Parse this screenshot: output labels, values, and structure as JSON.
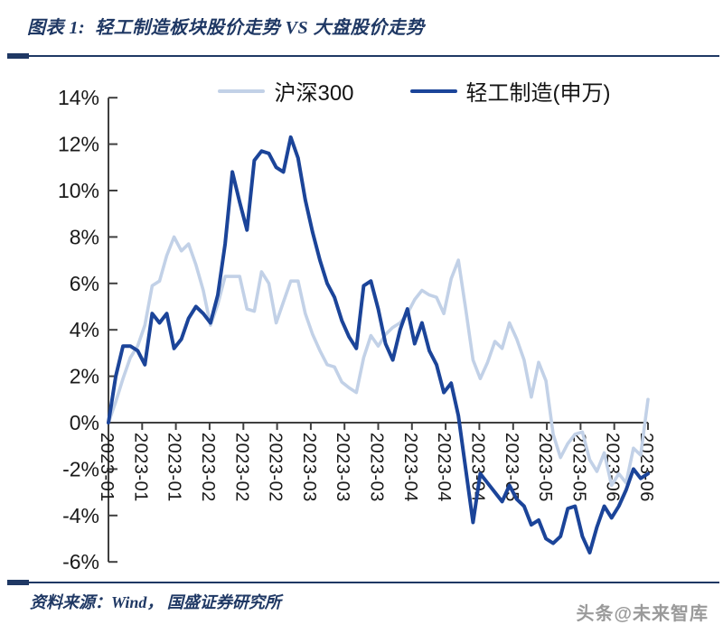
{
  "header": {
    "title": "图表 1:  轻工制造板块股价走势 VS 大盘股价走势"
  },
  "legend": {
    "items": [
      {
        "label": "沪深300",
        "color": "#c2d1e7"
      },
      {
        "label": "轻工制造(申万)",
        "color": "#1b4499"
      }
    ]
  },
  "chart_data": {
    "type": "line",
    "title": "轻工制造板块股价走势 VS 大盘股价走势",
    "xlabel": "",
    "ylabel": "",
    "y_unit": "%",
    "ylim": [
      -6,
      14
    ],
    "ytick_step": 2,
    "grid": false,
    "legend_position": "top",
    "ytick_labels": [
      "14%",
      "12%",
      "10%",
      "8%",
      "6%",
      "4%",
      "2%",
      "0%",
      "-2%",
      "-4%",
      "-6%"
    ],
    "xtick_labels": [
      "2023-01",
      "2023-01",
      "2023-01",
      "2023-02",
      "2023-02",
      "2023-02",
      "2023-03",
      "2023-03",
      "2023-03",
      "2023-04",
      "2023-04",
      "2023-04",
      "2023-05",
      "2023-05",
      "2023-05",
      "2023-06",
      "2023-06"
    ],
    "series": [
      {
        "name": "沪深300",
        "color": "#c2d1e7",
        "stroke_width": 3.6,
        "values": [
          0.0,
          0.9,
          1.9,
          2.8,
          3.3,
          4.2,
          5.9,
          6.1,
          7.2,
          8.0,
          7.4,
          7.7,
          6.8,
          5.7,
          4.2,
          5.1,
          6.3,
          6.3,
          6.3,
          4.9,
          4.8,
          6.5,
          6.0,
          4.3,
          5.2,
          6.1,
          6.1,
          4.7,
          3.8,
          3.1,
          2.5,
          2.4,
          1.75,
          1.5,
          1.3,
          2.8,
          3.75,
          3.3,
          3.8,
          4.1,
          4.3,
          4.7,
          5.3,
          5.7,
          5.5,
          5.4,
          4.7,
          6.2,
          7.0,
          4.9,
          2.7,
          1.9,
          2.6,
          3.5,
          3.2,
          4.3,
          3.6,
          2.7,
          1.1,
          2.6,
          1.8,
          -0.5,
          -1.5,
          -0.9,
          -0.5,
          -0.4,
          -1.6,
          -2.1,
          -1.3,
          -2.7,
          -2.2,
          -2.6,
          -1.1,
          -1.4,
          1.0
        ]
      },
      {
        "name": "轻工制造(申万)",
        "color": "#1b4499",
        "stroke_width": 4,
        "values": [
          0.0,
          2.0,
          3.3,
          3.3,
          3.1,
          2.5,
          4.7,
          4.3,
          4.7,
          3.2,
          3.6,
          4.5,
          5.0,
          4.7,
          4.3,
          5.5,
          7.7,
          10.8,
          9.5,
          8.3,
          11.3,
          11.7,
          11.6,
          11.0,
          10.8,
          12.3,
          11.4,
          9.6,
          8.2,
          7.0,
          6.0,
          5.4,
          4.4,
          3.7,
          3.2,
          5.9,
          6.1,
          4.9,
          3.4,
          2.7,
          4.0,
          4.9,
          3.4,
          4.3,
          3.1,
          2.5,
          1.3,
          1.7,
          0.3,
          -2.0,
          -4.3,
          -2.2,
          -2.6,
          -3.0,
          -3.4,
          -2.7,
          -3.3,
          -3.6,
          -4.4,
          -4.2,
          -5.0,
          -5.2,
          -4.9,
          -3.7,
          -3.6,
          -4.9,
          -5.6,
          -4.5,
          -3.6,
          -4.1,
          -3.6,
          -2.9,
          -2.0,
          -2.4,
          -2.2
        ]
      }
    ]
  },
  "footer": {
    "source": "资料来源：Wind， 国盛证券研究所",
    "watermark": "头条@未来智库"
  },
  "colors": {
    "accent_navy": "#1f3864",
    "axis": "#3f3f3f",
    "tick_text": "#1a1a1a",
    "watermark_gray": "#9a9a9a",
    "background": "#ffffff"
  }
}
